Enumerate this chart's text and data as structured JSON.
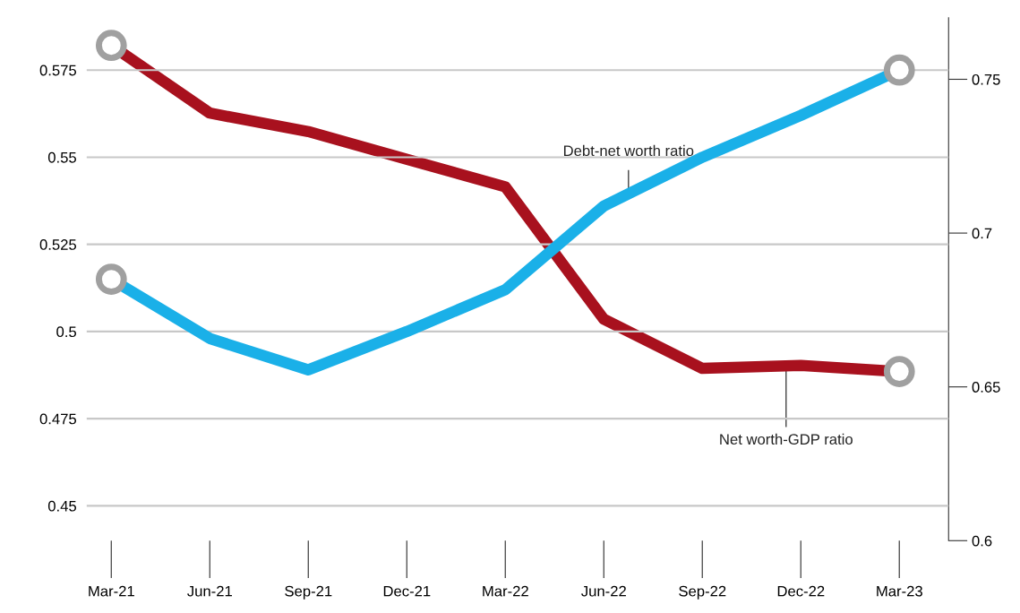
{
  "chart_data": {
    "type": "line",
    "categories": [
      "Mar-21",
      "Jun-21",
      "Sep-21",
      "Dec-21",
      "Mar-22",
      "Jun-22",
      "Sep-22",
      "Dec-22",
      "Mar-23"
    ],
    "series": [
      {
        "name": "Debt-net worth ratio",
        "color": "#1ab0e8",
        "values": [
          0.515,
          0.498,
          0.489,
          0.5,
          0.512,
          0.536,
          0.55,
          0.562,
          0.575
        ]
      },
      {
        "name": "Net worth-GDP ratio",
        "color": "#a8111e",
        "axis": "y2",
        "values": [
          0.761,
          0.739,
          0.733,
          0.724,
          0.715,
          0.672,
          0.656,
          0.657,
          0.655
        ]
      }
    ],
    "ylim": [
      0.44,
      0.59
    ],
    "yticks": [
      0.45,
      0.475,
      0.5,
      0.525,
      0.55,
      0.575
    ],
    "y2lim": [
      0.6,
      0.77
    ],
    "y2ticks": [
      0.6,
      0.65,
      0.7,
      0.75
    ],
    "grid": "y",
    "legend": false,
    "line_style": "solid"
  }
}
